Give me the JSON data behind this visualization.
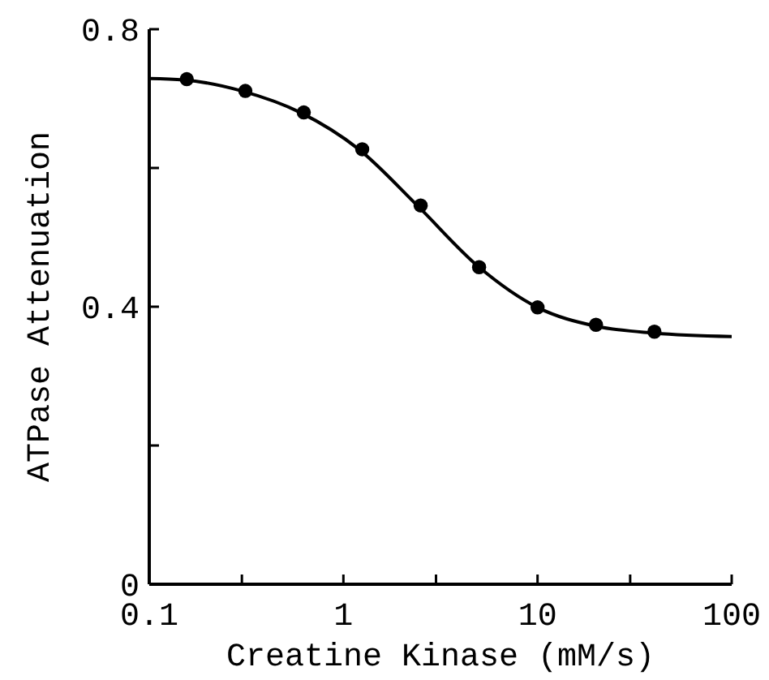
{
  "chart_data": {
    "type": "scatter",
    "xlabel": "Creatine Kinase (mM/s)",
    "ylabel": "ATPase Attenuation",
    "log": "x",
    "xlim": [
      0.1,
      100
    ],
    "ylim": [
      0,
      0.8
    ],
    "xticks": [
      {
        "value": 0.1,
        "label": "0.1"
      },
      {
        "value": 0.3,
        "label": null
      },
      1,
      {
        "value": 3,
        "label": null
      },
      10,
      {
        "value": 30,
        "label": null
      },
      100
    ],
    "yticks": [
      0,
      {
        "value": 0.2,
        "label": null
      },
      {
        "value": 0.4,
        "label": "0.4"
      },
      {
        "value": 0.6,
        "label": null
      },
      {
        "value": 0.8,
        "label": "0.8"
      }
    ],
    "grid": false,
    "series": [
      {
        "type": "line",
        "color": "#000000",
        "marker": "none",
        "line_style": "solid",
        "x": [
          0.1,
          0.15,
          0.3,
          0.6,
          1.2,
          2.4,
          5,
          10,
          20,
          40,
          100
        ],
        "values": [
          0.729,
          0.727,
          0.711,
          0.68,
          0.627,
          0.546,
          0.457,
          0.399,
          0.372,
          0.362,
          0.357
        ]
      },
      {
        "color": "#000000",
        "marker": "circle",
        "x": [
          0.156,
          0.3125,
          0.625,
          1.25,
          2.5,
          5,
          10,
          20,
          40
        ],
        "values": [
          0.728,
          0.711,
          0.68,
          0.627,
          0.546,
          0.457,
          0.399,
          0.374,
          0.364
        ]
      }
    ]
  }
}
